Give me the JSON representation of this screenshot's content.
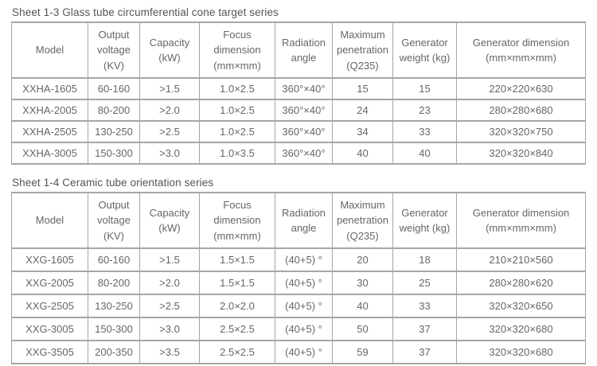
{
  "colors": {
    "border": "#a6a6a6",
    "text": "#666666",
    "title": "#555555",
    "background": "#ffffff"
  },
  "tables": [
    {
      "title": "Sheet 1-3 Glass tube circumferential cone target series",
      "headers": [
        "Model",
        "Output voltage (KV)",
        "Capacity (kW)",
        "Focus dimension (mm×mm)",
        "Radiation angle",
        "Maximum penetration (Q235)",
        "Generator weight (kg)",
        "Generator dimension (mm×mm×mm)"
      ],
      "rows": [
        [
          "XXHA-1605",
          "60-160",
          ">1.5",
          "1.0×2.5",
          "360°×40°",
          "15",
          "15",
          "220×220×630"
        ],
        [
          "XXHA-2005",
          "80-200",
          ">2.0",
          "1.0×2.5",
          "360°×40°",
          "24",
          "23",
          "280×280×680"
        ],
        [
          "XXHA-2505",
          "130-250",
          ">2.5",
          "1.0×2.5",
          "360°×40°",
          "34",
          "33",
          "320×320×750"
        ],
        [
          "XXHA-3005",
          "150-300",
          ">3.0",
          "1.0×3.5",
          "360°×40°",
          "40",
          "40",
          "320×320×840"
        ]
      ]
    },
    {
      "title": "Sheet 1-4 Ceramic tube orientation series",
      "headers": [
        "Model",
        "Output voltage (KV)",
        "Capacity (kW)",
        "Focus dimension (mm×mm)",
        "Radiation angle",
        "Maximum penetration (Q235)",
        "Generator weight (kg)",
        "Generator dimension (mm×mm×mm)"
      ],
      "rows": [
        [
          "XXG-1605",
          "60-160",
          ">1.5",
          "1.5×1.5",
          "(40+5) °",
          "20",
          "18",
          "210×210×560"
        ],
        [
          "XXG-2005",
          "80-200",
          ">2.0",
          "1.5×1.5",
          "(40+5) °",
          "30",
          "25",
          "280×280×620"
        ],
        [
          "XXG-2505",
          "130-250",
          ">2.5",
          "2.0×2.0",
          "(40+5) °",
          "40",
          "33",
          "320×320×650"
        ],
        [
          "XXG-3005",
          "150-300",
          ">3.0",
          "2.5×2.5",
          "(40+5) °",
          "50",
          "37",
          "320×320×680"
        ],
        [
          "XXG-3505",
          "200-350",
          ">3.5",
          "2.5×2.5",
          "(40+5) °",
          "59",
          "37",
          "320×320×680"
        ]
      ]
    }
  ]
}
